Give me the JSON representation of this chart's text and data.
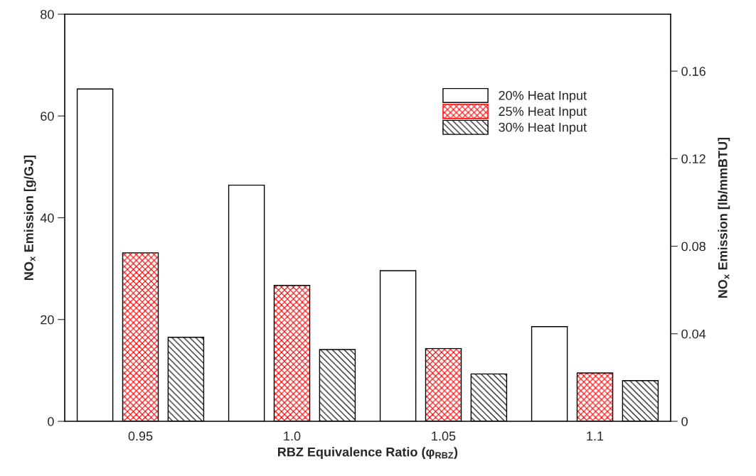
{
  "chart_data": {
    "type": "bar",
    "xlabel": "RBZ Equivalence Ratio (φ$_{RBZ}$)",
    "ylabel": "NO$_{x}$ Emission [g/GJ]",
    "y2label": "NO$_{x}$ Emission [lb/mmBTU]",
    "categories": [
      "0.95",
      "1.0",
      "1.05",
      "1.1"
    ],
    "series": [
      {
        "name": "20% Heat Input",
        "color": "#ffffff",
        "values": [
          65.3,
          46.4,
          29.6,
          18.6
        ]
      },
      {
        "name": "25% Heat Input",
        "color": "#ff0000",
        "values": [
          33.1,
          26.7,
          14.3,
          9.5
        ]
      },
      {
        "name": "30% Heat Input",
        "color": "#000000",
        "values": [
          16.5,
          14.1,
          9.3,
          8.0
        ]
      }
    ],
    "ylim": [
      0,
      80
    ],
    "yticks": [
      0,
      20,
      40,
      60,
      80
    ],
    "y2lim": [
      0,
      0.186
    ],
    "y2ticks": [
      0,
      0.04,
      0.08,
      0.12,
      0.16
    ],
    "grid": false,
    "legend": "top right"
  }
}
